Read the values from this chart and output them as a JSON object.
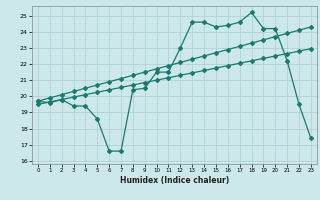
{
  "xlabel": "Humidex (Indice chaleur)",
  "bg_color": "#cce8ea",
  "grid_color": "#aacfd2",
  "line_color": "#1a7a6e",
  "xlim": [
    -0.5,
    23.5
  ],
  "ylim": [
    15.8,
    25.6
  ],
  "xticks": [
    0,
    1,
    2,
    3,
    4,
    5,
    6,
    7,
    8,
    9,
    10,
    11,
    12,
    13,
    14,
    15,
    16,
    17,
    18,
    19,
    20,
    21,
    22,
    23
  ],
  "yticks": [
    16,
    17,
    18,
    19,
    20,
    21,
    22,
    23,
    24,
    25
  ],
  "series1_x": [
    0,
    1,
    2,
    3,
    4,
    5,
    6,
    7,
    8,
    9,
    10,
    11,
    12,
    13,
    14,
    15,
    16,
    17,
    18,
    19,
    20,
    21,
    22,
    23
  ],
  "series1_y": [
    19.7,
    19.6,
    19.8,
    19.4,
    19.4,
    18.6,
    16.6,
    16.6,
    20.4,
    20.5,
    21.5,
    21.5,
    23.0,
    24.6,
    24.6,
    24.3,
    24.4,
    24.6,
    25.2,
    24.2,
    24.2,
    22.2,
    19.5,
    17.4
  ],
  "series2_x": [
    0,
    1,
    2,
    3,
    4,
    5,
    6,
    7,
    8,
    9,
    10,
    11,
    12,
    13,
    14,
    15,
    16,
    17,
    18,
    19,
    20,
    21,
    22,
    23
  ],
  "series2_y": [
    19.7,
    19.9,
    20.1,
    20.3,
    20.5,
    20.7,
    20.9,
    21.1,
    21.3,
    21.5,
    21.7,
    21.9,
    22.1,
    22.3,
    22.5,
    22.7,
    22.9,
    23.1,
    23.3,
    23.5,
    23.7,
    23.9,
    24.1,
    24.3
  ],
  "series3_x": [
    0,
    1,
    2,
    3,
    4,
    5,
    6,
    7,
    8,
    9,
    10,
    11,
    12,
    13,
    14,
    15,
    16,
    17,
    18,
    19,
    20,
    21,
    22,
    23
  ],
  "series3_y": [
    19.5,
    19.65,
    19.8,
    19.95,
    20.1,
    20.25,
    20.4,
    20.55,
    20.7,
    20.85,
    21.0,
    21.15,
    21.3,
    21.45,
    21.6,
    21.75,
    21.9,
    22.05,
    22.2,
    22.35,
    22.5,
    22.65,
    22.8,
    22.95
  ]
}
